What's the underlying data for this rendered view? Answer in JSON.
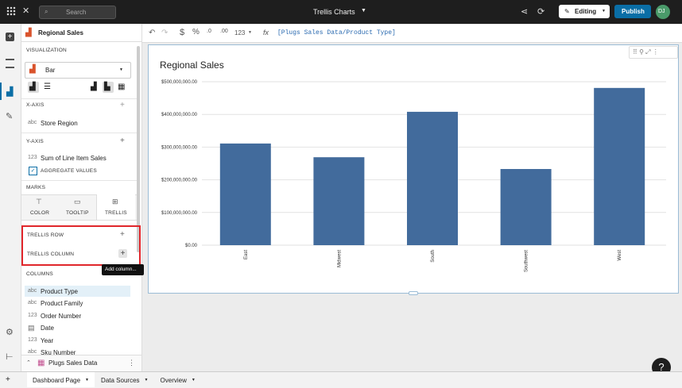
{
  "topbar": {
    "search_placeholder": "Search",
    "document_title": "Trellis Charts",
    "mode": "Editing",
    "publish": "Publish",
    "avatar": "DJ"
  },
  "formula_bar": {
    "format_buttons": [
      "$",
      "%",
      ".0",
      ".00",
      "123"
    ],
    "formula": "[Plugs Sales Data/Product Type]"
  },
  "panel": {
    "element_title": "Regional Sales",
    "visualization_label": "VISUALIZATION",
    "visualization_type": "Bar",
    "x_axis": {
      "label": "X-AXIS",
      "field_type": "abc",
      "field": "Store Region"
    },
    "y_axis": {
      "label": "Y-AXIS",
      "field_type": "123",
      "field": "Sum of Line Item Sales",
      "option": "AGGREGATE VALUES"
    },
    "marks": {
      "label": "MARKS",
      "tabs": [
        "COLOR",
        "TOOLTIP",
        "TRELLIS"
      ]
    },
    "trellis_row": "TRELLIS ROW",
    "trellis_column": "TRELLIS COLUMN",
    "tooltip": "Add column...",
    "columns_label": "COLUMNS",
    "columns": [
      {
        "type": "abc",
        "name": "Product Type"
      },
      {
        "type": "abc",
        "name": "Product Family"
      },
      {
        "type": "123",
        "name": "Order Number"
      },
      {
        "name": "Date"
      },
      {
        "type": "123",
        "name": "Year"
      },
      {
        "type": "abc",
        "name": "Sku Number"
      }
    ],
    "source": "Plugs Sales Data"
  },
  "chart_data": {
    "type": "bar",
    "title": "Regional Sales",
    "categories": [
      "East",
      "Midwest",
      "South",
      "Southwest",
      "West"
    ],
    "values": [
      311000000,
      269000000,
      408000000,
      233000000,
      481000000
    ],
    "color": "#426b9c",
    "ylim": [
      0,
      500000000
    ],
    "yticks": [
      {
        "value": 0,
        "label": "$0.00"
      },
      {
        "value": 100000000,
        "label": "$100,000,000.00"
      },
      {
        "value": 200000000,
        "label": "$200,000,000.00"
      },
      {
        "value": 300000000,
        "label": "$300,000,000.00"
      },
      {
        "value": 400000000,
        "label": "$400,000,000.00"
      },
      {
        "value": 500000000,
        "label": "$500,000,000.00"
      }
    ],
    "grid": true
  },
  "tabs": [
    "Dashboard Page",
    "Data Sources",
    "Overview"
  ]
}
